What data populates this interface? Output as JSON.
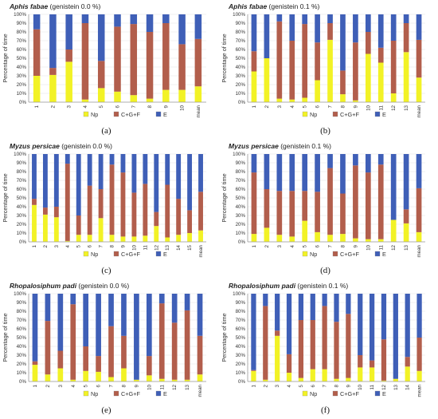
{
  "colors": {
    "Np": "#f2f226",
    "C+G+F": "#b25e4c",
    "E": "#3f5fb7",
    "accent": "#ff3d86"
  },
  "chart_data": [
    {
      "type": "bar",
      "stacked": true,
      "letter": "(a)",
      "title_species": "Aphis fabae",
      "title_rest": " (genistein 0.0 %)",
      "ylabel": "Percentage of time",
      "ylim": [
        0,
        100
      ],
      "yticks": [
        "0%",
        "10%",
        "20%",
        "30%",
        "40%",
        "50%",
        "60%",
        "70%",
        "80%",
        "90%",
        "100%"
      ],
      "categories": [
        "1",
        "2",
        "3",
        "4",
        "5",
        "6",
        "7",
        "8",
        "9",
        "10",
        "mean"
      ],
      "legend": [
        "Np",
        "C+G+F",
        "E"
      ],
      "series": [
        {
          "name": "Np",
          "values": [
            30,
            31,
            46,
            3,
            16,
            12,
            8,
            4,
            14,
            14,
            18
          ]
        },
        {
          "name": "C+G+F",
          "values": [
            53,
            8,
            14,
            87,
            31,
            74,
            81,
            76,
            76,
            52,
            54
          ]
        },
        {
          "name": "E",
          "values": [
            17,
            61,
            40,
            10,
            53,
            14,
            11,
            20,
            10,
            34,
            28
          ]
        }
      ]
    },
    {
      "type": "bar",
      "stacked": true,
      "letter": "(b)",
      "title_species": "Aphis fabae",
      "title_rest": " (genistein 0.1 %)",
      "ylabel": "Percentage of time",
      "ylim": [
        0,
        100
      ],
      "yticks": [
        "0%",
        "10%",
        "20%",
        "30%",
        "40%",
        "50%",
        "60%",
        "70%",
        "80%",
        "90%",
        "100%"
      ],
      "categories": [
        "1",
        "2",
        "3",
        "4",
        "5",
        "6",
        "7",
        "8",
        "9",
        "10",
        "11",
        "12",
        "13",
        "mean"
      ],
      "legend": [
        "Np",
        "C+G+F",
        "E"
      ],
      "series": [
        {
          "name": "Np",
          "values": [
            35,
            50,
            4,
            3,
            5,
            25,
            71,
            9,
            2,
            55,
            45,
            10,
            57,
            28
          ]
        },
        {
          "name": "C+G+F",
          "values": [
            23,
            0,
            88,
            67,
            84,
            43,
            19,
            27,
            66,
            25,
            17,
            60,
            33,
            43
          ]
        },
        {
          "name": "E",
          "values": [
            42,
            50,
            8,
            30,
            11,
            32,
            10,
            64,
            32,
            20,
            38,
            30,
            10,
            29
          ]
        }
      ]
    },
    {
      "type": "bar",
      "stacked": true,
      "letter": "(c)",
      "title_species": "Myzus persicae",
      "title_rest": " (genistein 0.0 %)",
      "ylabel": "Percentage of time",
      "ylim": [
        0,
        100
      ],
      "yticks": [
        "0%",
        "10%",
        "20%",
        "30%",
        "40%",
        "50%",
        "60%",
        "70%",
        "80%",
        "90%",
        "100%"
      ],
      "categories": [
        "1",
        "2",
        "3",
        "4",
        "5",
        "6",
        "7",
        "8",
        "9",
        "10",
        "11",
        "12",
        "13",
        "14",
        "15",
        "mean"
      ],
      "legend": [
        "Np",
        "C+G+F",
        "E"
      ],
      "series": [
        {
          "name": "Np",
          "values": [
            42,
            31,
            28,
            1,
            8,
            8,
            27,
            8,
            6,
            6,
            7,
            18,
            5,
            8,
            10,
            13
          ]
        },
        {
          "name": "C+G+F",
          "values": [
            7,
            8,
            12,
            88,
            22,
            56,
            33,
            80,
            73,
            50,
            59,
            16,
            60,
            41,
            26,
            44
          ]
        },
        {
          "name": "E",
          "values": [
            51,
            61,
            60,
            11,
            70,
            36,
            40,
            12,
            21,
            44,
            34,
            66,
            35,
            51,
            64,
            43
          ]
        }
      ]
    },
    {
      "type": "bar",
      "stacked": true,
      "letter": "(d)",
      "title_species": "Myzus persicae",
      "title_rest": " (genistein 0.1 %)",
      "ylabel": "Percentage of time",
      "ylim": [
        0,
        100
      ],
      "yticks": [
        "0%",
        "10%",
        "20%",
        "30%",
        "40%",
        "50%",
        "60%",
        "70%",
        "80%",
        "90%",
        "100%"
      ],
      "categories": [
        "1",
        "2",
        "3",
        "4",
        "5",
        "6",
        "7",
        "8",
        "9",
        "10",
        "11",
        "12",
        "13",
        "mean"
      ],
      "legend": [
        "Np",
        "C+G+F",
        "E"
      ],
      "series": [
        {
          "name": "Np",
          "values": [
            9,
            16,
            8,
            6,
            24,
            11,
            8,
            9,
            4,
            3,
            3,
            25,
            21,
            11
          ]
        },
        {
          "name": "C+G+F",
          "values": [
            70,
            44,
            50,
            52,
            34,
            46,
            76,
            46,
            83,
            76,
            85,
            0,
            16,
            50
          ]
        },
        {
          "name": "E",
          "values": [
            21,
            40,
            42,
            42,
            42,
            43,
            16,
            45,
            13,
            21,
            12,
            75,
            63,
            39
          ]
        }
      ]
    },
    {
      "type": "bar",
      "stacked": true,
      "letter": "(e)",
      "title_species": "Rhopalosiphum padi",
      "title_rest": " (genistein 0.0 %)",
      "ylabel": "Percentage of time",
      "ylim": [
        0,
        100
      ],
      "yticks": [
        "0%",
        "10%",
        "20%",
        "30%",
        "40%",
        "50%",
        "60%",
        "70%",
        "80%",
        "90%",
        "100%"
      ],
      "categories": [
        "1",
        "2",
        "3",
        "4",
        "5",
        "6",
        "7",
        "8",
        "9",
        "10",
        "11",
        "12",
        "13",
        "mean"
      ],
      "legend": [
        "Np",
        "C+G+F",
        "E"
      ],
      "series": [
        {
          "name": "Np",
          "values": [
            19,
            8,
            15,
            2,
            12,
            11,
            5,
            15,
            2,
            7,
            3,
            2,
            2,
            8
          ]
        },
        {
          "name": "C+G+F",
          "values": [
            4,
            61,
            20,
            86,
            28,
            18,
            58,
            37,
            0,
            22,
            86,
            65,
            79,
            44
          ]
        },
        {
          "name": "E",
          "values": [
            77,
            31,
            65,
            12,
            60,
            71,
            37,
            48,
            98,
            71,
            11,
            33,
            19,
            48
          ]
        }
      ]
    },
    {
      "type": "bar",
      "stacked": true,
      "letter": "(f)",
      "title_species": "Rhopalosiphum padi",
      "title_rest": " (genistein 0.1 %)",
      "ylabel": "Percentage of time",
      "ylim": [
        0,
        100
      ],
      "yticks": [
        "0%",
        "10%",
        "20%",
        "30%",
        "40%",
        "50%",
        "60%",
        "70%",
        "80%",
        "90%",
        "100%"
      ],
      "categories": [
        "1",
        "2",
        "3",
        "4",
        "5",
        "6",
        "7",
        "8",
        "9",
        "10",
        "11",
        "12",
        "13",
        "14",
        "mean"
      ],
      "legend": [
        "Np",
        "C+G+F",
        "E"
      ],
      "series": [
        {
          "name": "Np",
          "values": [
            12,
            2,
            52,
            10,
            4,
            14,
            14,
            3,
            4,
            16,
            16,
            1,
            3,
            17,
            12
          ]
        },
        {
          "name": "C+G+F",
          "values": [
            1,
            84,
            6,
            21,
            66,
            56,
            72,
            65,
            73,
            14,
            8,
            47,
            0,
            11,
            38
          ]
        },
        {
          "name": "E",
          "values": [
            87,
            14,
            42,
            69,
            30,
            30,
            14,
            32,
            23,
            70,
            76,
            52,
            97,
            72,
            50
          ]
        }
      ]
    }
  ]
}
